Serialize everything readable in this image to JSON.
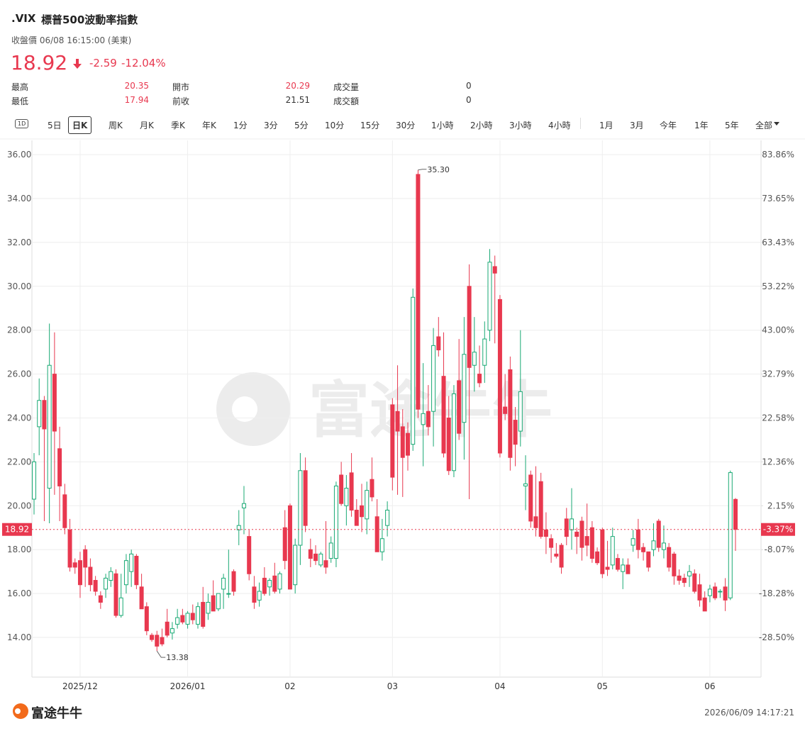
{
  "header": {
    "symbol": ".VIX",
    "name": "標普500波動率指數",
    "status": "收盤價 06/08 16:15:00 (美東)"
  },
  "quote": {
    "price": "18.92",
    "change": "-2.59",
    "change_pct": "-12.04%",
    "stats": [
      [
        "最高",
        "20.35",
        "開市",
        "20.29",
        "成交量",
        "0"
      ],
      [
        "最低",
        "17.94",
        "前收",
        "21.51",
        "成交額",
        "0"
      ]
    ]
  },
  "toolbar": {
    "tabs": [
      "1D",
      "5日",
      "日K",
      "周K",
      "月K",
      "季K",
      "年K",
      "1分",
      "3分",
      "5分",
      "10分",
      "15分",
      "30分",
      "1小時",
      "2小時",
      "3小時",
      "4小時",
      "1月",
      "3月",
      "今年",
      "1年",
      "5年",
      "全部"
    ]
  },
  "footer": {
    "brand": "富途牛牛",
    "timestamp": "2026/06/09 14:17:21"
  },
  "chart_data": {
    "type": "candlestick",
    "up_color": "#19a974",
    "down_color": "#e8384f",
    "grid": true,
    "ylim": [
      12.19,
      36.65
    ],
    "yticks": [
      {
        "value": 14,
        "label": "14.00"
      },
      {
        "value": 16,
        "label": "16.00"
      },
      {
        "value": 18,
        "label": "18.00"
      },
      {
        "value": 20,
        "label": "20.00"
      },
      {
        "value": 22,
        "label": "22.00"
      },
      {
        "value": 24,
        "label": "24.00"
      },
      {
        "value": 26,
        "label": "26.00"
      },
      {
        "value": 28,
        "label": "28.00"
      },
      {
        "value": 30,
        "label": "30.00"
      },
      {
        "value": 32,
        "label": "32.00"
      },
      {
        "value": 34,
        "label": "34.00"
      },
      {
        "value": 36,
        "label": "36.00"
      }
    ],
    "y2lim": [
      -37.74,
      87.18
    ],
    "y2ticks": [
      {
        "value": -28.5,
        "label": "-28.50%"
      },
      {
        "value": -18.28,
        "label": "-18.28%"
      },
      {
        "value": -8.07,
        "label": "-8.07%"
      },
      {
        "value": 2.15,
        "label": "2.15%"
      },
      {
        "value": 12.36,
        "label": "12.36%"
      },
      {
        "value": 22.58,
        "label": "22.58%"
      },
      {
        "value": 32.79,
        "label": "32.79%"
      },
      {
        "value": 43,
        "label": "43.00%"
      },
      {
        "value": 53.22,
        "label": "53.22%"
      },
      {
        "value": 63.43,
        "label": "63.43%"
      },
      {
        "value": 73.65,
        "label": "73.65%"
      },
      {
        "value": 83.86,
        "label": "83.86%"
      }
    ],
    "price_line": 18.92,
    "price_line_pct": {
      "value": -3.37,
      "label": "-3.37%"
    },
    "max_label": {
      "value": 35.3,
      "label": "35.30"
    },
    "min_label": {
      "value": 13.38,
      "label": "13.38"
    },
    "categories": [
      null,
      null,
      null,
      null,
      null,
      null,
      null,
      null,
      null,
      "2025/12",
      null,
      null,
      null,
      null,
      null,
      null,
      null,
      null,
      null,
      null,
      null,
      null,
      null,
      null,
      null,
      null,
      null,
      null,
      null,
      null,
      "2026/01",
      null,
      null,
      null,
      null,
      null,
      null,
      null,
      null,
      null,
      null,
      null,
      null,
      null,
      null,
      null,
      null,
      null,
      null,
      null,
      "02",
      null,
      null,
      null,
      null,
      null,
      null,
      null,
      null,
      null,
      null,
      null,
      null,
      null,
      null,
      null,
      null,
      null,
      null,
      null,
      "03",
      null,
      null,
      null,
      null,
      null,
      null,
      null,
      null,
      null,
      null,
      null,
      null,
      null,
      null,
      null,
      null,
      null,
      null,
      null,
      null,
      "04",
      null,
      null,
      null,
      null,
      null,
      null,
      null,
      null,
      null,
      null,
      null,
      null,
      null,
      null,
      null,
      null,
      null,
      null,
      null,
      "05",
      null,
      null,
      null,
      null,
      null,
      null,
      null,
      null,
      null,
      null,
      null,
      null,
      null,
      null,
      null,
      null,
      null,
      null,
      null,
      null,
      "06",
      null,
      null,
      null,
      null,
      null
    ],
    "open": [
      20.3,
      23.6,
      24.8,
      20.8,
      26.0,
      22.6,
      20.5,
      18.9,
      17.4,
      17.5,
      18.0,
      17.2,
      16.6,
      15.9,
      16.2,
      16.6,
      16.9,
      15.0,
      16.4,
      17.0,
      17.7,
      16.3,
      15.4,
      14.1,
      14.1,
      14.0,
      14.7,
      14.2,
      14.6,
      15.0,
      14.6,
      15.1,
      14.6,
      15.6,
      15.1,
      15.9,
      15.3,
      16.2,
      16.0,
      17.0,
      18.9,
      19.9,
      18.6,
      16.3,
      15.7,
      16.7,
      16.3,
      16.8,
      16.2,
      19.0,
      20.0,
      16.4,
      18.2,
      21.6,
      18.0,
      17.8,
      17.3,
      17.5,
      17.6,
      17.6,
      21.4,
      20.0,
      21.5,
      19.8,
      20.0,
      19.4,
      21.2,
      19.5,
      17.9,
      19.1,
      24.6,
      24.3,
      23.6,
      23.3,
      22.8,
      35.1,
      23.7,
      24.3,
      24.3,
      27.7,
      25.9,
      24.0,
      21.6,
      25.7,
      23.8,
      30.0,
      26.4,
      26.0,
      26.4,
      28.0,
      30.9,
      29.4,
      24.5,
      26.2,
      23.9,
      23.4,
      20.9,
      21.4,
      19.5,
      21.1,
      18.9,
      18.5,
      17.8,
      18.2,
      19.4,
      18.9,
      18.8,
      19.3,
      18.6,
      19.0,
      17.9,
      18.9,
      17.2,
      17.3,
      17.6,
      17.0,
      17.3,
      18.2,
      18.9,
      18.1,
      17.9,
      18.0,
      19.3,
      18.0,
      18.1,
      17.8,
      16.8,
      16.7,
      16.8,
      16.9,
      16.4,
      15.8,
      15.9,
      16.3,
      16.1,
      16.3,
      15.8,
      20.29
    ],
    "high": [
      22.4,
      25.8,
      25.0,
      28.3,
      27.9,
      23.6,
      21.0,
      19.4,
      17.6,
      17.9,
      18.2,
      17.6,
      16.8,
      16.1,
      16.9,
      17.2,
      17.1,
      16.9,
      17.8,
      18.0,
      17.8,
      16.9,
      15.6,
      14.2,
      14.3,
      14.4,
      15.3,
      14.7,
      15.3,
      15.3,
      15.2,
      15.5,
      15.6,
      16.3,
      16.0,
      16.6,
      16.0,
      16.9,
      18.0,
      17.1,
      19.8,
      20.9,
      18.9,
      16.8,
      16.5,
      17.2,
      16.7,
      17.4,
      17.0,
      19.8,
      20.1,
      18.5,
      22.4,
      22.2,
      18.5,
      18.2,
      17.9,
      19.3,
      18.6,
      21.1,
      22.0,
      21.4,
      22.4,
      20.3,
      21.0,
      21.1,
      22.2,
      20.3,
      19.4,
      20.2,
      24.9,
      26.4,
      24.4,
      23.8,
      29.9,
      35.3,
      26.5,
      25.5,
      28.1,
      28.6,
      27.9,
      25.0,
      25.5,
      27.6,
      28.6,
      31.0,
      28.6,
      27.3,
      28.4,
      31.7,
      31.4,
      29.6,
      26.0,
      26.8,
      24.5,
      28.0,
      22.3,
      21.6,
      21.8,
      21.5,
      19.7,
      18.7,
      18.3,
      18.3,
      19.9,
      20.8,
      19.0,
      19.5,
      20.1,
      19.3,
      18.1,
      19.0,
      18.4,
      19.0,
      17.8,
      17.6,
      17.6,
      18.9,
      19.4,
      18.3,
      17.9,
      19.2,
      19.4,
      19.1,
      18.3,
      17.9,
      17.1,
      16.9,
      17.3,
      17.1,
      16.9,
      16.1,
      16.4,
      16.5,
      16.2,
      16.7,
      21.6,
      20.35
    ],
    "low": [
      19.6,
      22.3,
      19.3,
      19.2,
      20.5,
      19.3,
      18.7,
      17.0,
      16.9,
      15.8,
      16.3,
      16.1,
      15.9,
      15.3,
      15.8,
      16.3,
      14.9,
      14.9,
      16.0,
      16.3,
      16.2,
      15.3,
      14.1,
      13.8,
      13.38,
      13.6,
      14.0,
      13.9,
      14.4,
      14.6,
      14.4,
      14.6,
      14.4,
      14.4,
      14.8,
      15.2,
      15.2,
      15.3,
      15.8,
      15.9,
      18.2,
      18.7,
      16.6,
      15.3,
      15.4,
      15.9,
      15.9,
      16.0,
      16.0,
      17.1,
      16.2,
      16.0,
      17.3,
      18.8,
      17.2,
      17.3,
      17.2,
      16.9,
      17.4,
      17.2,
      20.0,
      19.1,
      19.5,
      19.1,
      18.8,
      18.7,
      20.2,
      17.9,
      17.5,
      18.6,
      20.7,
      20.5,
      20.4,
      21.6,
      22.5,
      24.0,
      21.8,
      23.2,
      22.7,
      26.8,
      22.2,
      21.4,
      21.3,
      23.0,
      22.1,
      20.3,
      25.2,
      25.4,
      25.6,
      27.5,
      27.4,
      22.2,
      23.9,
      21.6,
      21.8,
      22.7,
      19.8,
      19.0,
      18.6,
      18.5,
      17.8,
      17.4,
      17.6,
      16.9,
      18.2,
      18.0,
      17.8,
      17.5,
      17.7,
      17.4,
      17.3,
      16.7,
      16.8,
      17.1,
      17.0,
      16.2,
      16.9,
      17.9,
      17.6,
      17.5,
      17.0,
      17.7,
      17.9,
      17.6,
      17.0,
      16.4,
      16.4,
      16.3,
      16.3,
      16.0,
      15.4,
      15.2,
      15.6,
      15.7,
      15.8,
      15.2,
      15.7,
      17.94
    ],
    "close": [
      22.0,
      24.8,
      23.5,
      26.4,
      23.4,
      20.9,
      19.0,
      17.2,
      17.2,
      16.4,
      17.2,
      16.4,
      16.1,
      15.6,
      16.7,
      17.0,
      15.0,
      15.8,
      17.5,
      17.8,
      16.4,
      15.3,
      14.3,
      13.9,
      13.6,
      13.7,
      14.1,
      14.4,
      14.9,
      14.7,
      15.1,
      14.8,
      15.4,
      14.5,
      15.6,
      15.2,
      16.0,
      16.7,
      16.0,
      16.1,
      19.1,
      20.1,
      16.9,
      15.6,
      16.1,
      16.0,
      16.6,
      16.1,
      16.9,
      17.5,
      16.2,
      18.2,
      21.6,
      19.1,
      17.6,
      17.5,
      17.8,
      17.2,
      18.3,
      20.9,
      20.1,
      20.8,
      19.8,
      19.1,
      19.5,
      20.7,
      20.4,
      17.9,
      18.5,
      19.8,
      21.3,
      23.4,
      22.2,
      22.3,
      29.5,
      24.4,
      24.2,
      23.6,
      27.3,
      27.1,
      22.4,
      21.6,
      25.1,
      23.3,
      26.9,
      26.3,
      27.0,
      25.6,
      27.6,
      31.1,
      30.6,
      22.4,
      24.2,
      22.2,
      22.8,
      25.2,
      21.0,
      19.3,
      19.0,
      18.6,
      18.6,
      18.1,
      17.7,
      17.2,
      18.6,
      19.4,
      18.6,
      18.1,
      18.2,
      17.6,
      17.4,
      16.9,
      17.1,
      18.6,
      17.1,
      17.3,
      16.9,
      18.5,
      18.0,
      17.9,
      17.2,
      18.4,
      18.1,
      18.3,
      17.2,
      16.8,
      16.6,
      16.5,
      17.0,
      16.1,
      15.7,
      15.2,
      16.2,
      15.8,
      16.1,
      15.7,
      21.51,
      18.92
    ]
  }
}
